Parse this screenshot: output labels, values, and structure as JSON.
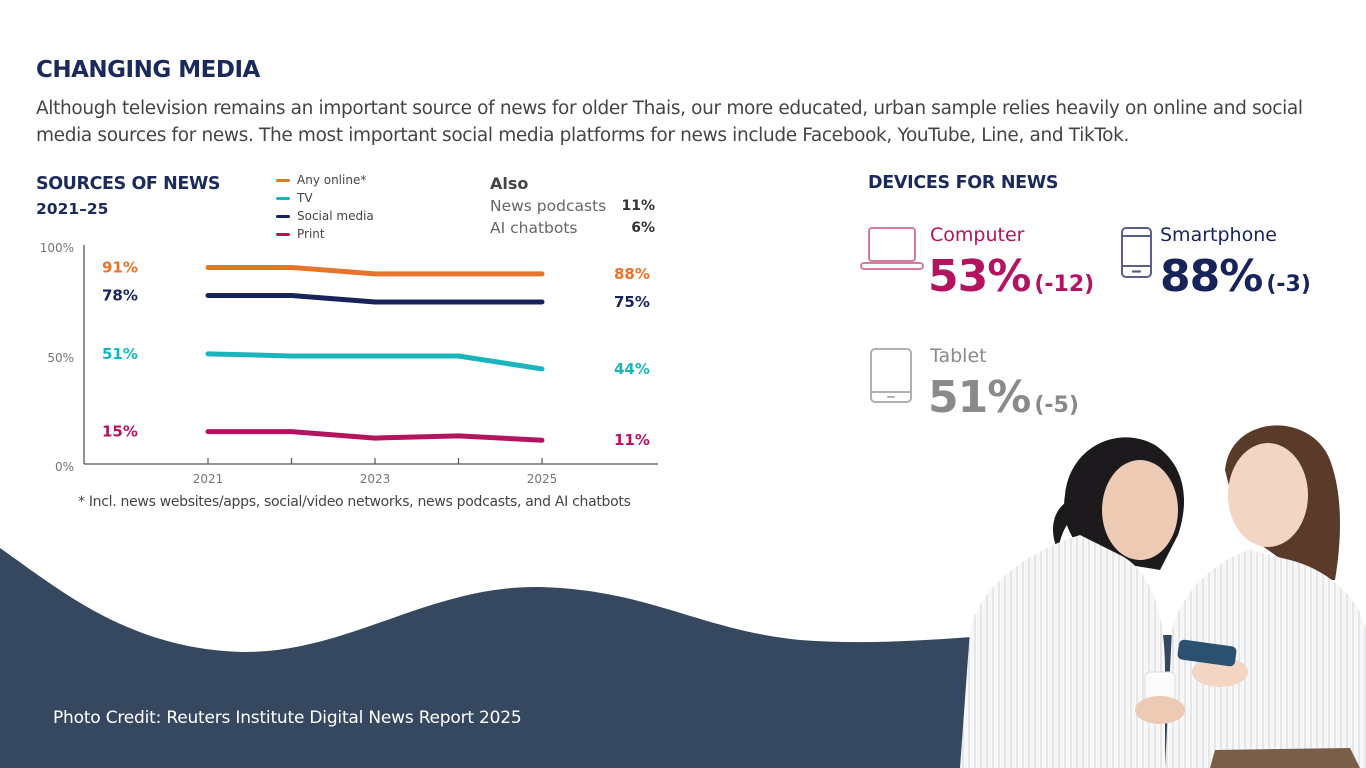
{
  "header": {
    "title": "CHANGING MEDIA",
    "intro": "Although television remains an important source of news for older Thais, our more educated, urban sample relies heavily on online and social media sources for news. The most important social media platforms for news include Facebook, YouTube, Line, and TikTok."
  },
  "sources": {
    "title": "SOURCES OF NEWS",
    "subtitle": "2021–25",
    "legend": [
      {
        "label": "Any online*",
        "color": "#e8732a"
      },
      {
        "label": "TV",
        "color": "#1ab4bd"
      },
      {
        "label": "Social media",
        "color": "#17245a"
      },
      {
        "label": "Print",
        "color": "#b3135f"
      }
    ],
    "also": {
      "title": "Also",
      "rows": [
        {
          "label": "News podcasts",
          "value": "11%"
        },
        {
          "label": "AI chatbots",
          "value": "6%"
        }
      ]
    },
    "footnote": "* Incl. news websites/apps, social/video networks, news podcasts, and AI chatbots"
  },
  "chart_data": {
    "type": "line",
    "title": "SOURCES OF NEWS 2021–25",
    "xlabel": "",
    "ylabel": "",
    "x": [
      2021,
      2022,
      2023,
      2024,
      2025
    ],
    "x_tick_labels": [
      "2021",
      "",
      "2023",
      "",
      "2025"
    ],
    "y_tick_labels": [
      "0%",
      "50%",
      "100%"
    ],
    "ylim": [
      0,
      100
    ],
    "grid": false,
    "legend_position": "top-center",
    "series": [
      {
        "name": "Any online*",
        "color": "#e8732a",
        "values": [
          91,
          91,
          88,
          88,
          88
        ],
        "start_label": "91%",
        "end_label": "88%"
      },
      {
        "name": "Social media",
        "color": "#17245a",
        "values": [
          78,
          78,
          75,
          75,
          75
        ],
        "start_label": "78%",
        "end_label": "75%"
      },
      {
        "name": "TV",
        "color": "#1ab4bd",
        "values": [
          51,
          50,
          50,
          50,
          44
        ],
        "start_label": "51%",
        "end_label": "44%"
      },
      {
        "name": "Print",
        "color": "#b3135f",
        "values": [
          15,
          15,
          12,
          13,
          11
        ],
        "start_label": "15%",
        "end_label": "11%"
      }
    ]
  },
  "devices": {
    "title": "DEVICES FOR NEWS",
    "items": [
      {
        "label": "Computer",
        "value": "53%",
        "change": "(-12)",
        "color": "#b3135f",
        "icon_color": "#d77a9e",
        "icon": "laptop-icon"
      },
      {
        "label": "Smartphone",
        "value": "88%",
        "change": "(-3)",
        "color": "#17245a",
        "icon_color": "#5a5e8e",
        "icon": "smartphone-icon"
      },
      {
        "label": "Tablet",
        "value": "51%",
        "change": "(-5)",
        "color": "#8a8a8a",
        "icon_color": "#b0b0b0",
        "icon": "tablet-icon"
      }
    ]
  },
  "footer": {
    "credit": "Photo Credit: Reuters Institute Digital News Report 2025",
    "wave_color": "#36485f"
  }
}
